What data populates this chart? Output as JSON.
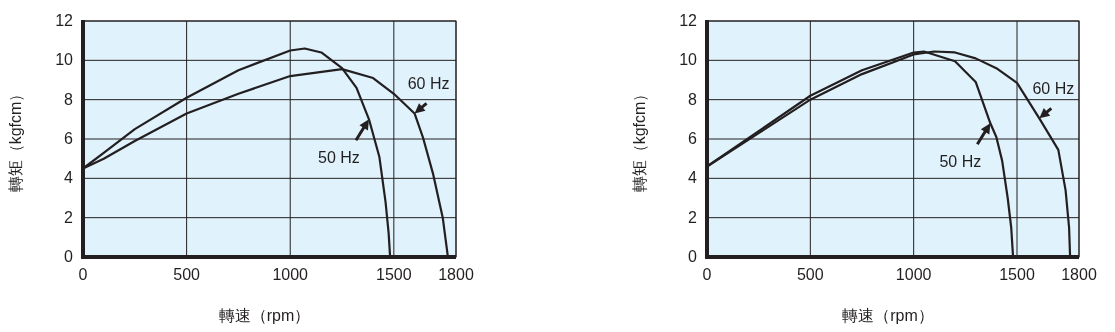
{
  "chart_data": [
    {
      "type": "line",
      "xlabel": "轉速（rpm）",
      "ylabel": "轉矩（kgfcm）",
      "xlim": [
        0,
        1800
      ],
      "ylim": [
        0,
        12
      ],
      "xticks": [
        0,
        500,
        1000,
        1500,
        1800
      ],
      "yticks": [
        0,
        2,
        4,
        6,
        8,
        10,
        12
      ],
      "grid": true,
      "line_style": "solid",
      "marker": "none",
      "series": [
        {
          "color": "#231f20",
          "x": [
            0,
            100,
            250,
            500,
            750,
            1000,
            1070,
            1150,
            1250,
            1320,
            1380,
            1430,
            1460,
            1475,
            1482
          ],
          "values": [
            4.5,
            5.3,
            6.5,
            8.1,
            9.5,
            10.5,
            10.6,
            10.4,
            9.6,
            8.6,
            7.0,
            5.1,
            2.8,
            1.2,
            0
          ]
        },
        {
          "color": "#231f20",
          "x": [
            0,
            100,
            250,
            500,
            750,
            1000,
            1250,
            1400,
            1500,
            1600,
            1640,
            1690,
            1736,
            1761
          ],
          "values": [
            4.5,
            5.0,
            5.9,
            7.3,
            8.3,
            9.2,
            9.55,
            9.1,
            8.3,
            7.3,
            6.1,
            4.2,
            2.0,
            0
          ]
        }
      ],
      "annotations": [
        {
          "text": "50 Hz",
          "x": 1380,
          "y": 7.0
        },
        {
          "text": "60 Hz",
          "x": 1600,
          "y": 7.3
        }
      ]
    },
    {
      "type": "line",
      "xlabel": "轉速（rpm）",
      "ylabel": "轉矩（kgfcm）",
      "xlim": [
        0,
        1800
      ],
      "ylim": [
        0,
        12
      ],
      "xticks": [
        0,
        500,
        1000,
        1500,
        1800
      ],
      "yticks": [
        0,
        2,
        4,
        6,
        8,
        10,
        12
      ],
      "grid": true,
      "line_style": "solid",
      "marker": "none",
      "series": [
        {
          "color": "#231f20",
          "x": [
            0,
            250,
            500,
            750,
            1000,
            1050,
            1200,
            1300,
            1371,
            1400,
            1428,
            1455,
            1472,
            1481
          ],
          "values": [
            4.6,
            6.4,
            8.2,
            9.5,
            10.4,
            10.45,
            9.95,
            8.9,
            6.8,
            6.1,
            4.9,
            3.0,
            1.5,
            0
          ]
        },
        {
          "color": "#231f20",
          "x": [
            0,
            250,
            500,
            750,
            1000,
            1100,
            1200,
            1300,
            1400,
            1500,
            1608,
            1700,
            1735,
            1752,
            1757
          ],
          "values": [
            4.6,
            6.3,
            8.0,
            9.3,
            10.3,
            10.45,
            10.4,
            10.1,
            9.6,
            8.85,
            7.05,
            5.45,
            3.4,
            1.5,
            0
          ]
        }
      ],
      "annotations": [
        {
          "text": "50 Hz",
          "x": 1371,
          "y": 6.8
        },
        {
          "text": "60 Hz",
          "x": 1608,
          "y": 7.05
        }
      ]
    }
  ]
}
